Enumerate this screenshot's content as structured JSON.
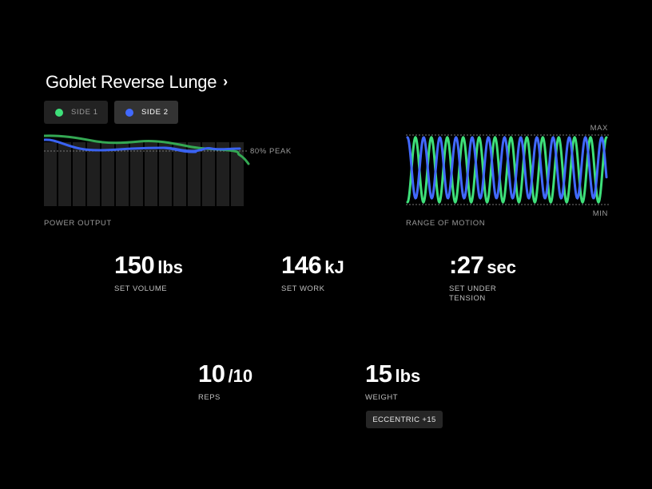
{
  "exercise": {
    "title": "Goblet Reverse Lunge"
  },
  "sides": [
    {
      "label": "SIDE 1",
      "color": "#3ee07a",
      "selected": false
    },
    {
      "label": "SIDE 2",
      "color": "#4169ff",
      "selected": true
    }
  ],
  "power_chart": {
    "caption": "POWER OUTPUT",
    "peak_label": "80% PEAK",
    "bar_count": 14
  },
  "rom_chart": {
    "caption": "RANGE OF MOTION",
    "max_label": "MAX",
    "min_label": "MIN"
  },
  "stats": {
    "volume": {
      "value": "150",
      "unit": "lbs",
      "label": "SET VOLUME"
    },
    "work": {
      "value": "146",
      "unit": "kJ",
      "label": "SET WORK"
    },
    "tension": {
      "value": ":27",
      "unit": "sec",
      "label": "SET UNDER",
      "label2": "TENSION"
    },
    "reps": {
      "value": "10",
      "unit": "/10",
      "label": "REPS"
    },
    "weight": {
      "value": "15",
      "unit": "lbs",
      "label": "WEIGHT"
    }
  },
  "eccentric_badge": "ECCENTRIC +15",
  "colors": {
    "green": "#3ee07a",
    "blue": "#4169ff",
    "background": "#000000",
    "bar": "#1f1f1f"
  }
}
